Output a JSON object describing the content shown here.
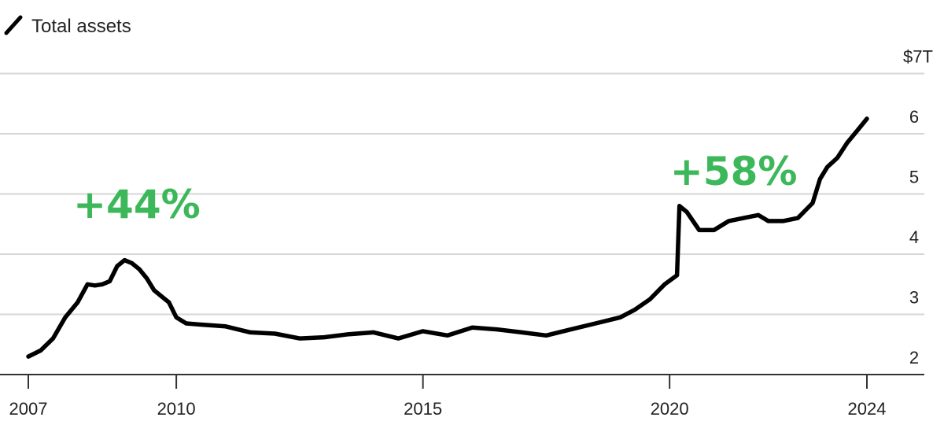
{
  "chart_data": {
    "type": "line",
    "series": [
      {
        "name": "Total assets",
        "x": [
          2007.0,
          2007.25,
          2007.5,
          2007.75,
          2008.0,
          2008.2,
          2008.35,
          2008.5,
          2008.65,
          2008.8,
          2008.95,
          2009.1,
          2009.25,
          2009.4,
          2009.55,
          2009.7,
          2009.85,
          2010.0,
          2010.2,
          2010.5,
          2011.0,
          2011.5,
          2012.0,
          2012.5,
          2013.0,
          2013.5,
          2014.0,
          2014.5,
          2015.0,
          2015.5,
          2016.0,
          2016.5,
          2017.0,
          2017.5,
          2018.0,
          2018.5,
          2019.0,
          2019.3,
          2019.6,
          2019.9,
          2020.15,
          2020.2,
          2020.35,
          2020.6,
          2020.9,
          2021.2,
          2021.5,
          2021.8,
          2022.0,
          2022.3,
          2022.6,
          2022.9,
          2023.05,
          2023.2,
          2023.4,
          2023.6,
          2023.8,
          2024.0
        ],
        "values": [
          2.3,
          2.4,
          2.6,
          2.95,
          3.2,
          3.5,
          3.48,
          3.5,
          3.55,
          3.8,
          3.9,
          3.85,
          3.75,
          3.6,
          3.4,
          3.3,
          3.2,
          2.95,
          2.85,
          2.83,
          2.8,
          2.7,
          2.68,
          2.6,
          2.62,
          2.67,
          2.7,
          2.6,
          2.72,
          2.65,
          2.78,
          2.75,
          2.7,
          2.65,
          2.75,
          2.85,
          2.95,
          3.08,
          3.25,
          3.5,
          3.65,
          4.8,
          4.7,
          4.4,
          4.4,
          4.55,
          4.6,
          4.65,
          4.55,
          4.55,
          4.6,
          4.85,
          5.25,
          5.45,
          5.6,
          5.85,
          6.05,
          6.25
        ]
      }
    ],
    "xlim": [
      2007,
      2024
    ],
    "ylim": [
      2,
      7
    ],
    "x_ticks": [
      2007,
      2010,
      2015,
      2020,
      2024
    ],
    "x_tick_labels": [
      "2007",
      "2010",
      "2015",
      "2020",
      "2024"
    ],
    "y_ticks": [
      2,
      3,
      4,
      5,
      6,
      7
    ],
    "y_tick_labels": [
      "2",
      "3",
      "4",
      "5",
      "6",
      "$7T"
    ],
    "legend": {
      "label": "Total assets",
      "position": "top-left"
    },
    "grid": true,
    "annotations": [
      {
        "text": "+44%",
        "x": 2009.2,
        "y": 4.6,
        "color": "#3cb85a"
      },
      {
        "text": "+58%",
        "x": 2021.3,
        "y": 5.15,
        "color": "#3cb85a"
      }
    ],
    "title": "",
    "xlabel": "",
    "ylabel": ""
  }
}
